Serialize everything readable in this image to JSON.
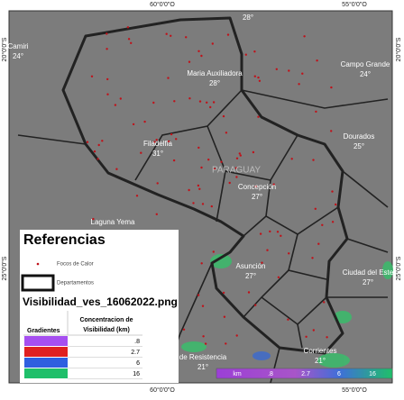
{
  "coordinate_labels": {
    "top": [
      "60°0'0\"O",
      "55°0'0\"O"
    ],
    "bottom": [
      "60°0'0\"O",
      "55°0'0\"O"
    ],
    "left": [
      "20°0'0\"S",
      "25°0'0\"S"
    ],
    "right": [
      "20°0'0\"S",
      "25°0'0\"S"
    ]
  },
  "places": [
    {
      "name": "Camiri",
      "temp": "24°"
    },
    {
      "temp": "28°"
    },
    {
      "name": "Maria Auxiliadora",
      "temp": "28°"
    },
    {
      "name": "Campo Grande",
      "temp": "24°"
    },
    {
      "name": "Filadelfia",
      "temp": "31°"
    },
    {
      "name": "Dourados",
      "temp": "25°"
    },
    {
      "name": "Concepción",
      "temp": "27°"
    },
    {
      "name": "Laguna Yema"
    },
    {
      "name": "Asunción",
      "temp": "27°"
    },
    {
      "name": "Ciudad del Este",
      "temp": "27°"
    },
    {
      "name": "de Resistencia",
      "temp": "21°"
    },
    {
      "name": "Corrientes",
      "temp": "21°"
    }
  ],
  "country": "PARAGUAY",
  "legend": {
    "title": "Referencias",
    "items": [
      "Focos de Calor",
      "Departamentos"
    ],
    "layer": "Visibilidad_ves_16062022.png",
    "table_header": [
      "Gradientes",
      "Concentracion de Visibilidad (km)"
    ],
    "rows": [
      ".8",
      "2.7",
      "6",
      "16"
    ]
  },
  "scale_bar": {
    "unit": "km",
    "labels": [
      ".8",
      "2.7",
      "6",
      "16"
    ]
  }
}
